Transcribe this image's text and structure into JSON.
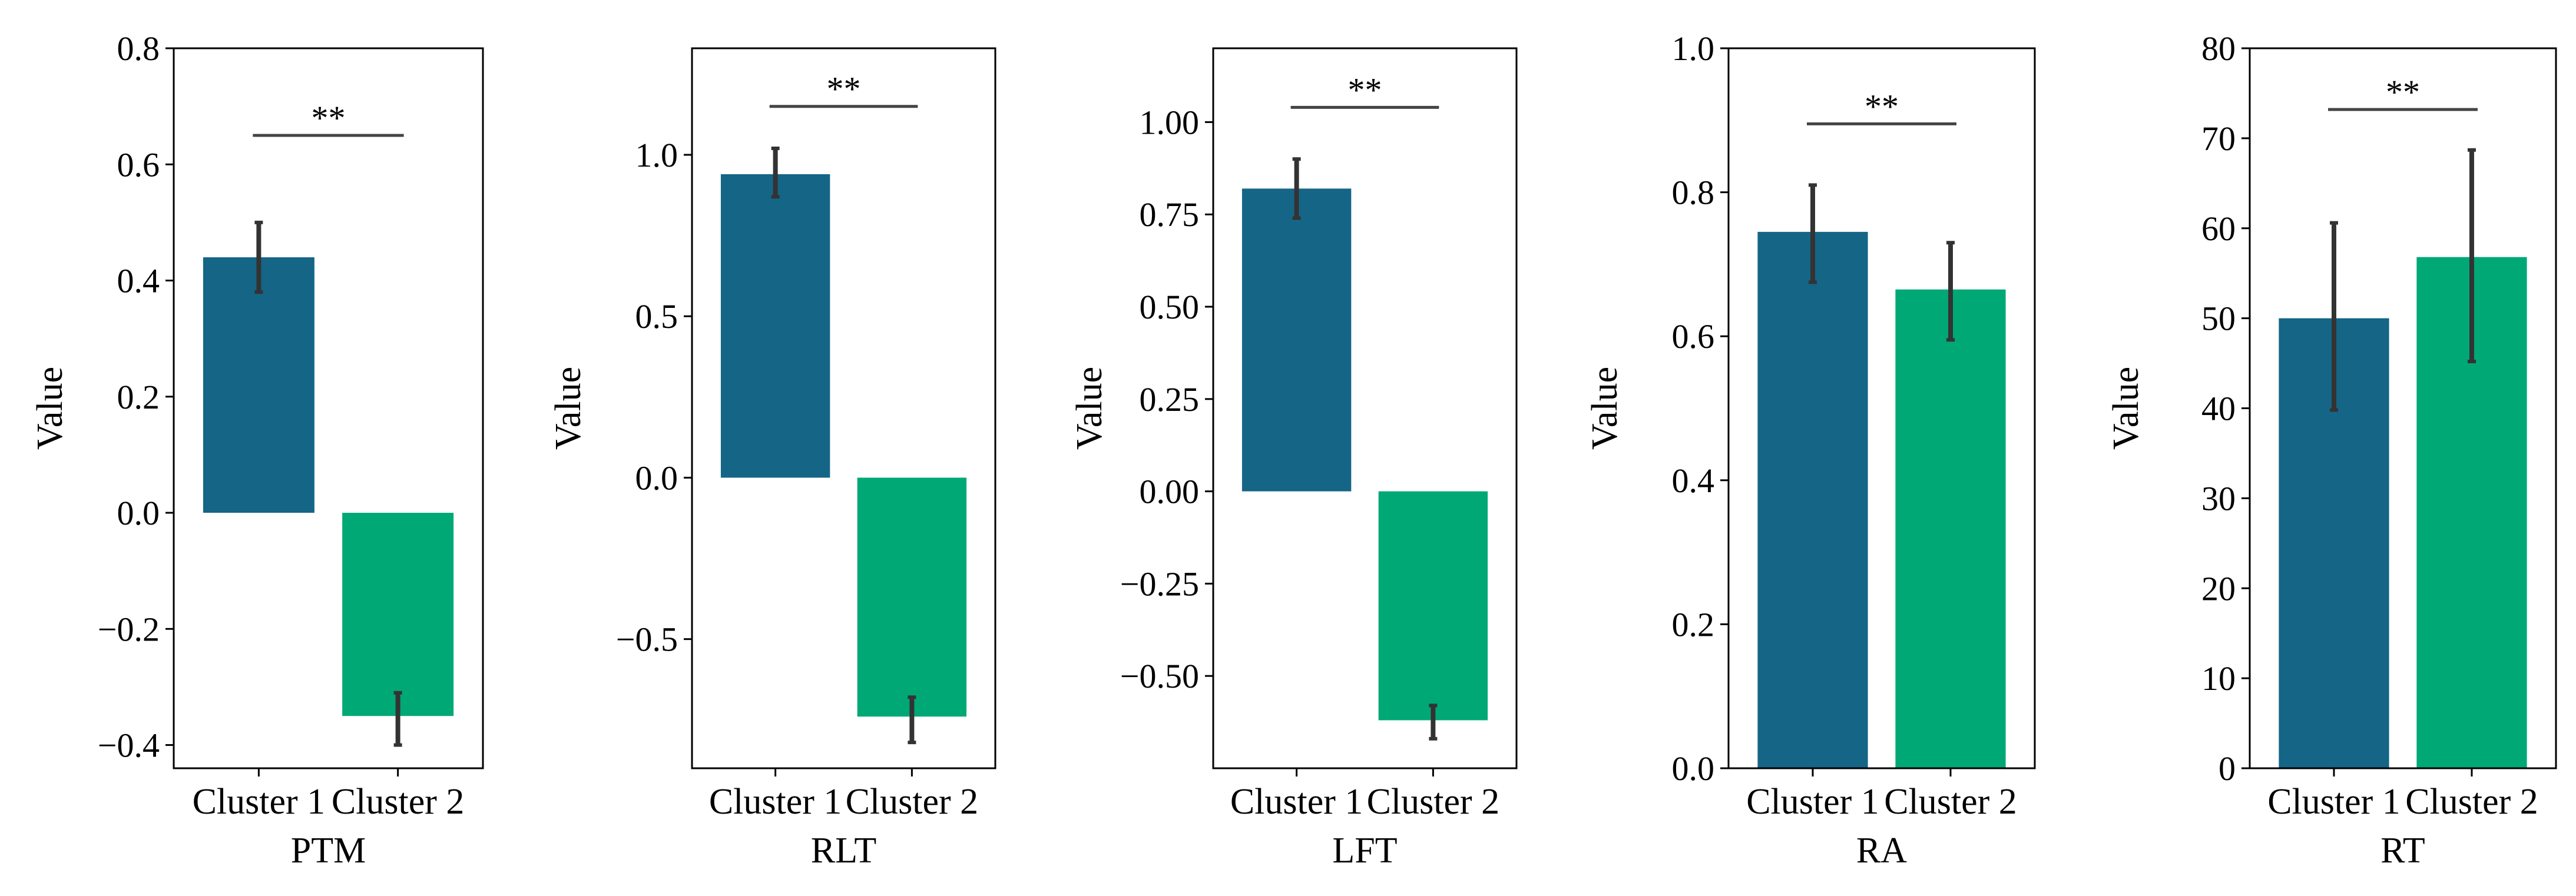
{
  "colors": {
    "cluster_1": "#156587",
    "cluster_2": "#00a876",
    "error_bar": "#333333",
    "significance_line": "#444444",
    "axes": "#000000"
  },
  "chart_data": [
    {
      "type": "bar",
      "title": "",
      "xlabel": "PTM",
      "ylabel": "Value",
      "categories": [
        "Cluster 1",
        "Cluster 2"
      ],
      "values": [
        0.44,
        -0.35
      ],
      "errors_low": [
        0.38,
        -0.4
      ],
      "errors_high": [
        0.5,
        -0.31
      ],
      "ylim": [
        -0.44,
        0.8
      ],
      "yticks": [
        -0.4,
        -0.2,
        0.0,
        0.2,
        0.4,
        0.6,
        0.8
      ],
      "ytick_labels": [
        "−0.4",
        "−0.2",
        "0.0",
        "0.2",
        "0.4",
        "0.6",
        "0.8"
      ],
      "significance": {
        "label": "**",
        "y": 0.65
      },
      "grid": false,
      "legend": "none"
    },
    {
      "type": "bar",
      "title": "",
      "xlabel": "RLT",
      "ylabel": "Value",
      "categories": [
        "Cluster 1",
        "Cluster 2"
      ],
      "values": [
        0.94,
        -0.74
      ],
      "errors_low": [
        0.87,
        -0.82
      ],
      "errors_high": [
        1.02,
        -0.68
      ],
      "ylim": [
        -0.9,
        1.33
      ],
      "yticks": [
        -0.5,
        0.0,
        0.5,
        1.0
      ],
      "ytick_labels": [
        "−0.5",
        "0.0",
        "0.5",
        "1.0"
      ],
      "significance": {
        "label": "**",
        "y": 1.15
      },
      "grid": false,
      "legend": "none"
    },
    {
      "type": "bar",
      "title": "",
      "xlabel": "LFT",
      "ylabel": "Value",
      "categories": [
        "Cluster 1",
        "Cluster 2"
      ],
      "values": [
        0.82,
        -0.62
      ],
      "errors_low": [
        0.74,
        -0.67
      ],
      "errors_high": [
        0.9,
        -0.58
      ],
      "ylim": [
        -0.75,
        1.2
      ],
      "yticks": [
        -0.5,
        -0.25,
        0.0,
        0.25,
        0.5,
        0.75,
        1.0
      ],
      "ytick_labels": [
        "−0.50",
        "−0.25",
        "0.00",
        "0.25",
        "0.50",
        "0.75",
        "1.00"
      ],
      "significance": {
        "label": "**",
        "y": 1.04
      },
      "grid": false,
      "legend": "none"
    },
    {
      "type": "bar",
      "title": "",
      "xlabel": "RA",
      "ylabel": "Value",
      "categories": [
        "Cluster 1",
        "Cluster 2"
      ],
      "values": [
        0.745,
        0.665
      ],
      "errors_low": [
        0.675,
        0.595
      ],
      "errors_high": [
        0.81,
        0.73
      ],
      "ylim": [
        0.0,
        1.0
      ],
      "yticks": [
        0.0,
        0.2,
        0.4,
        0.6,
        0.8,
        1.0
      ],
      "ytick_labels": [
        "0.0",
        "0.2",
        "0.4",
        "0.6",
        "0.8",
        "1.0"
      ],
      "significance": {
        "label": "**",
        "y": 0.895
      },
      "grid": false,
      "legend": "none"
    },
    {
      "type": "bar",
      "title": "",
      "xlabel": "RT",
      "ylabel": "Value",
      "categories": [
        "Cluster 1",
        "Cluster 2"
      ],
      "values": [
        50,
        56.8
      ],
      "errors_low": [
        39.8,
        45.2
      ],
      "errors_high": [
        60.6,
        68.7
      ],
      "ylim": [
        0,
        80
      ],
      "yticks": [
        0,
        10,
        20,
        30,
        40,
        50,
        60,
        70,
        80
      ],
      "ytick_labels": [
        "0",
        "10",
        "20",
        "30",
        "40",
        "50",
        "60",
        "70",
        "80"
      ],
      "significance": {
        "label": "**",
        "y": 73.2
      },
      "grid": false,
      "legend": "none"
    }
  ]
}
